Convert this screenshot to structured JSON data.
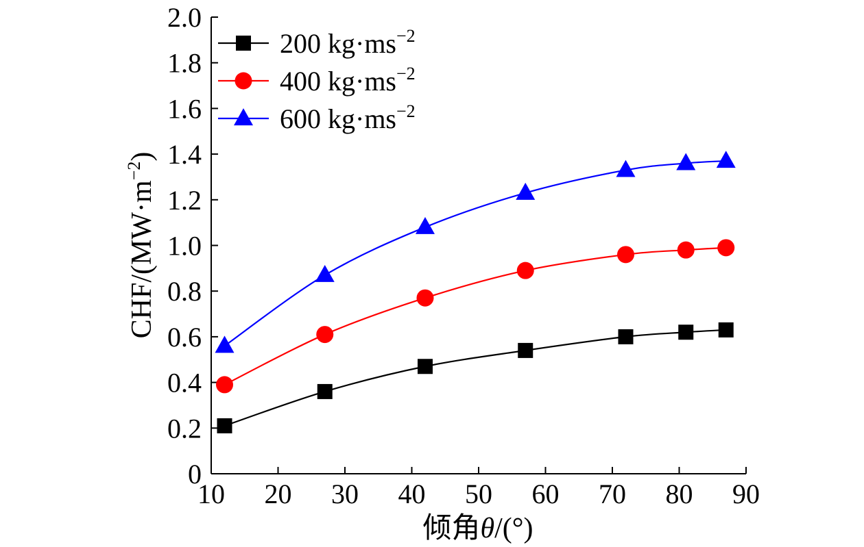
{
  "chart_data": {
    "type": "line",
    "title": "",
    "xlabel": "倾角θ/(°)",
    "xlabel_parts": {
      "prefix": "倾角",
      "symbol": "θ",
      "suffix": "/(°)"
    },
    "ylabel": "CHF/(MW·m−2)",
    "ylabel_parts": {
      "main": "CHF/(MW·m",
      "sup": "−2",
      "close": ")"
    },
    "xlim": [
      10,
      90
    ],
    "ylim": [
      0,
      2.0
    ],
    "xticks": [
      10,
      20,
      30,
      40,
      50,
      60,
      70,
      80,
      90
    ],
    "yticks": [
      0,
      0.2,
      0.4,
      0.6,
      0.8,
      1.0,
      1.2,
      1.4,
      1.6,
      1.8,
      2.0
    ],
    "xtick_labels": [
      "10",
      "20",
      "30",
      "40",
      "50",
      "60",
      "70",
      "80",
      "90"
    ],
    "ytick_labels": [
      "0",
      "0.2",
      "0.4",
      "0.6",
      "0.8",
      "1.0",
      "1.2",
      "1.4",
      "1.6",
      "1.8",
      "2.0"
    ],
    "grid": false,
    "legend_position": "top-left",
    "x": [
      12,
      27,
      42,
      57,
      72,
      81,
      87
    ],
    "series": [
      {
        "name": "200 kg·ms−2",
        "label_main": "200 kg·ms",
        "label_sup": "−2",
        "color": "#000000",
        "marker": "square",
        "values": [
          0.21,
          0.36,
          0.47,
          0.54,
          0.6,
          0.62,
          0.63
        ]
      },
      {
        "name": "400 kg·ms−2",
        "label_main": "400 kg·ms",
        "label_sup": "−2",
        "color": "#ff0000",
        "marker": "circle",
        "values": [
          0.39,
          0.61,
          0.77,
          0.89,
          0.96,
          0.98,
          0.99
        ]
      },
      {
        "name": "600 kg·ms−2",
        "label_main": "600 kg·ms",
        "label_sup": "−2",
        "color": "#0000ff",
        "marker": "triangle",
        "values": [
          0.56,
          0.87,
          1.08,
          1.23,
          1.33,
          1.36,
          1.37
        ]
      }
    ]
  }
}
